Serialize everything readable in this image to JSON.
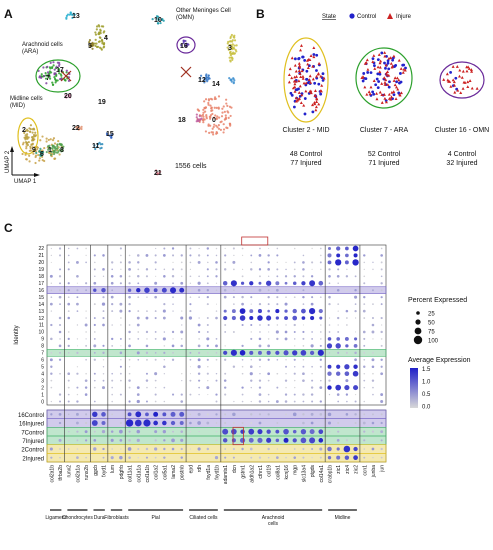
{
  "panels": {
    "a": "A",
    "b": "B",
    "c": "C"
  },
  "umap": {
    "xlabel": "UMAP 1",
    "ylabel": "UMAP 2",
    "cell_count": "1556 cells",
    "groups": [
      {
        "label": "Arachnoid cells\n(ARA)",
        "color": "#2ca02c"
      },
      {
        "label": "Midline cells\n(MID)",
        "color": "#e0c020"
      },
      {
        "label": "Other Meninges Cell\n(OMN)",
        "color": "#6a2a9a"
      }
    ],
    "cluster_numbers": [
      "0",
      "1",
      "2",
      "3",
      "4",
      "5",
      "6",
      "7",
      "8",
      "9",
      "10",
      "11",
      "12",
      "13",
      "14",
      "15",
      "16",
      "17",
      "18",
      "19",
      "20",
      "21",
      "22"
    ],
    "cluster_colors": {
      "0": "#e8836b",
      "1": "#c8a24a",
      "2": "#b8a040",
      "3": "#c8c040",
      "4": "#9c9c2a",
      "5": "#8a7a20",
      "6": "#5aa05a",
      "7": "#2ca02c",
      "8": "#4fa04a",
      "9": "#2aa08a",
      "10": "#1a9aaa",
      "11": "#2a8ab8",
      "12": "#3a7ac8",
      "13": "#2ab0d0",
      "14": "#4090d0",
      "15": "#3060c0",
      "16": "#6040b0",
      "17": "#8040a0",
      "18": "#c060a0",
      "19": "#d070b0",
      "20": "#e080b0",
      "21": "#d07080",
      "22": "#e09070"
    }
  },
  "legend_b": {
    "title": "State",
    "control": "Control",
    "injure": "Injure",
    "control_color": "#2222cc",
    "injure_color": "#cc2222"
  },
  "clusters_b": [
    {
      "name": "Cluster 2 - MID",
      "control": "48 Control",
      "injured": "77 Injured",
      "outline": "#e0c020"
    },
    {
      "name": "Cluster 7 - ARA",
      "control": "52 Control",
      "injured": "71 Injured",
      "outline": "#2ca02c"
    },
    {
      "name": "Cluster 16 - OMN",
      "control": "4 Control",
      "injured": "32 Injured",
      "outline": "#6a2a9a"
    }
  ],
  "chart_data": {
    "type": "dotplot",
    "ylabel": "Identity",
    "rows_top": [
      "22",
      "21",
      "20",
      "19",
      "18",
      "17",
      "16",
      "15",
      "14",
      "13",
      "12",
      "11",
      "10",
      "9",
      "8",
      "7",
      "6",
      "5",
      "4",
      "3",
      "2",
      "1",
      "0"
    ],
    "rows_bottom": [
      "16Control",
      "16Injured",
      "7Control",
      "7Injured",
      "2Control",
      "2Injured"
    ],
    "genes": [
      "col2a1b",
      "tfrba2b",
      "runx2",
      "col2a1a",
      "runx2b",
      "ggcb",
      "fxyd1",
      "lum",
      "pdgfrb",
      "col11a1",
      "col1a1a",
      "col1a1b",
      "col1a2",
      "col5a1",
      "lama2",
      "postnb",
      "epd",
      "rdh",
      "fxyd1a",
      "fxyd1b",
      "adamts1",
      "dcn",
      "gstm1",
      "aldh1a2",
      "cthrc1",
      "ccl19",
      "col8a1",
      "kcnj16",
      "mgp",
      "slc13a4",
      "ptgds",
      "col14a1",
      "crabp1b",
      "zic1",
      "zic4",
      "zic2",
      "ccn1",
      "junba",
      "jun"
    ],
    "gene_groups": [
      {
        "label": "Ligament",
        "span": [
          0,
          1
        ]
      },
      {
        "label": "Chondrocytes",
        "span": [
          2,
          4
        ]
      },
      {
        "label": "Dura",
        "span": [
          5,
          6
        ]
      },
      {
        "label": "Fibroblasts",
        "span": [
          7,
          8
        ]
      },
      {
        "label": "Pial",
        "span": [
          9,
          15
        ]
      },
      {
        "label": "Ciliated cells",
        "span": [
          16,
          19
        ]
      },
      {
        "label": "Arachnoid\ncells",
        "span": [
          20,
          31
        ]
      },
      {
        "label": "Midline",
        "span": [
          32,
          35
        ]
      }
    ],
    "size_legend": {
      "title": "Percent Expressed",
      "values": [
        25,
        50,
        75,
        100
      ]
    },
    "color_legend": {
      "title": "Average Expression",
      "ticks": [
        "1.5",
        "1.0",
        "0.5",
        "0.0"
      ],
      "low": "#d8d8d8",
      "high": "#2020c8"
    },
    "highlight_rows_top": [
      {
        "row": "16",
        "color": "#7a6ac8"
      },
      {
        "row": "7",
        "color": "#4ab870"
      }
    ],
    "highlight_rows_bottom": [
      {
        "row": "16Control",
        "color": "#7a6ac8"
      },
      {
        "row": "16Injured",
        "color": "#7a6ac8"
      },
      {
        "row": "7Control",
        "color": "#4ab870"
      },
      {
        "row": "7Injured",
        "color": "#4ab870"
      },
      {
        "row": "2Control",
        "color": "#e0c020"
      },
      {
        "row": "2Injured",
        "color": "#e0c020"
      }
    ]
  }
}
